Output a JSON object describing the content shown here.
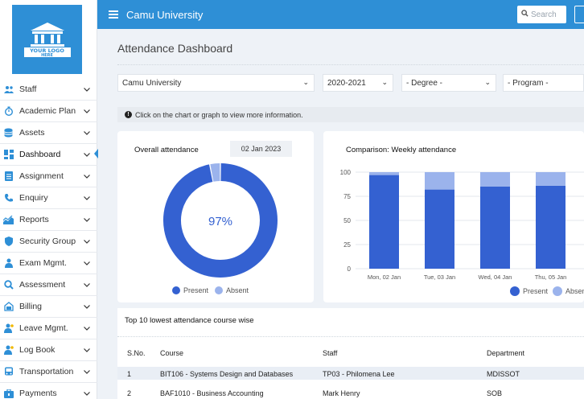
{
  "logo": {
    "line1": "YOUR LOGO",
    "line2": "HERE"
  },
  "header": {
    "title": "Camu University",
    "search_placeholder": "Search",
    "accent": "#2e8fd6"
  },
  "sidebar": {
    "items": [
      {
        "label": "Staff",
        "icon": "users-icon"
      },
      {
        "label": "Academic Plan",
        "icon": "stopwatch-icon"
      },
      {
        "label": "Assets",
        "icon": "database-icon"
      },
      {
        "label": "Dashboard",
        "icon": "dashboard-icon",
        "active": true
      },
      {
        "label": "Assignment",
        "icon": "document-icon"
      },
      {
        "label": "Enquiry",
        "icon": "phone-icon"
      },
      {
        "label": "Reports",
        "icon": "chart-icon"
      },
      {
        "label": "Security Group",
        "icon": "shield-icon"
      },
      {
        "label": "Exam Mgmt.",
        "icon": "exam-icon"
      },
      {
        "label": "Assessment",
        "icon": "search-icon"
      },
      {
        "label": "Billing",
        "icon": "billing-icon"
      },
      {
        "label": "Leave Mgmt.",
        "icon": "user-leave-icon"
      },
      {
        "label": "Log Book",
        "icon": "user-log-icon"
      },
      {
        "label": "Transportation",
        "icon": "bus-icon"
      },
      {
        "label": "Payments",
        "icon": "payments-icon"
      }
    ]
  },
  "page": {
    "title": "Attendance Dashboard"
  },
  "filters": {
    "institution": "Camu University",
    "year": "2020-2021",
    "degree": "- Degree -",
    "program": "- Program -"
  },
  "info_text": "Click on the chart or graph to view more information.",
  "overall": {
    "title": "Overall attendance",
    "date": "02 Jan 2023",
    "percent_label": "97%",
    "present": 97,
    "absent": 3,
    "legend_present": "Present",
    "legend_absent": "Absent"
  },
  "weekly": {
    "title": "Comparison: Weekly attendance",
    "legend_present": "Present",
    "legend_absent": "Absent"
  },
  "chart_data": {
    "type": "bar",
    "title": "Comparison: Weekly attendance",
    "stacked": true,
    "categories": [
      "Mon, 02 Jan",
      "Tue, 03 Jan",
      "Wed, 04 Jan",
      "Thu, 05 Jan"
    ],
    "series": [
      {
        "name": "Present",
        "values": [
          97,
          82,
          85,
          86
        ],
        "color": "#3461d1"
      },
      {
        "name": "Absent",
        "values": [
          3,
          18,
          15,
          14
        ],
        "color": "#9bb3ec"
      }
    ],
    "yticks": [
      "0",
      "25",
      "50",
      "75",
      "100"
    ],
    "ylim": [
      0,
      100
    ],
    "grid": true,
    "legend": "bottom"
  },
  "table": {
    "title": "Top 10 lowest attendance course wise",
    "headers": [
      "S.No.",
      "Course",
      "Staff",
      "Department"
    ],
    "rows": [
      [
        "1",
        "BIT106 - Systems Design and Databases",
        "TP03 - Philomena Lee",
        "MDISSOT"
      ],
      [
        "2",
        "BAF1010 - Business Accounting",
        "Mark Henry",
        "SOB"
      ]
    ]
  },
  "colors": {
    "present": "#3461d1",
    "absent": "#9bb3ec",
    "row_alt": "#e9eef5"
  }
}
